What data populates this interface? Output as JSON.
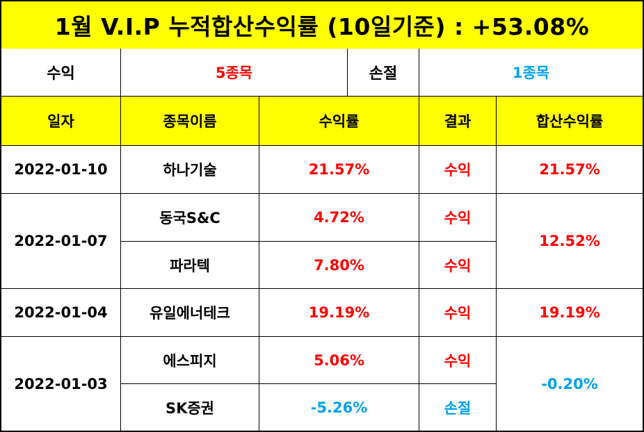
{
  "title": "1월 V.I.P 누적합산수익률 (10일기준) : +53.08%",
  "summary": {
    "profit_label": "수익",
    "profit_count": "5종목",
    "loss_label": "손절",
    "loss_count": "1종목"
  },
  "headers": [
    "일자",
    "종목이름",
    "수익률",
    "결과",
    "합산수익률"
  ],
  "groups": [
    {
      "date": "2022-01-10",
      "combined": "21.57%",
      "rows": [
        {
          "name": "하나기술",
          "rate": "21.57%",
          "result": "수익"
        }
      ]
    },
    {
      "date": "2022-01-07",
      "combined": "12.52%",
      "rows": [
        {
          "name": "동국S&C",
          "rate": "4.72%",
          "result": "수익"
        },
        {
          "name": "파라텍",
          "rate": "7.80%",
          "result": "수익"
        }
      ]
    },
    {
      "date": "2022-01-04",
      "combined": "19.19%",
      "rows": [
        {
          "name": "유일에너테크",
          "rate": "19.19%",
          "result": "수익"
        }
      ]
    },
    {
      "date": "2022-01-03",
      "combined": "-0.20%",
      "rows": [
        {
          "name": "에스피지",
          "rate": "5.06%",
          "result": "수익"
        },
        {
          "name": "SK증권",
          "rate": "-5.26%",
          "result": "손절"
        }
      ]
    }
  ],
  "colors": {
    "header_bg": "#ffff00",
    "profit": "#ff0000",
    "loss": "#00a0e9"
  }
}
